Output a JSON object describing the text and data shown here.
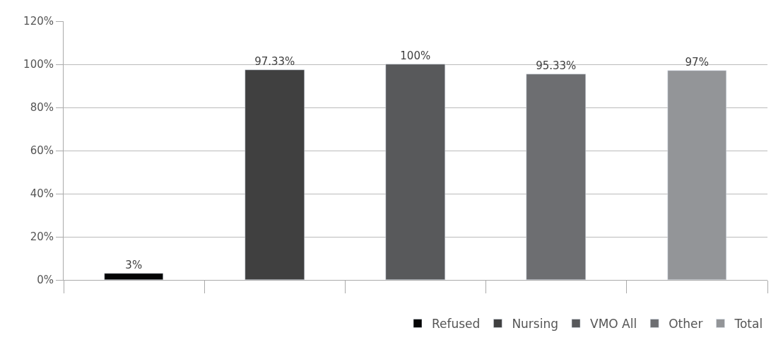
{
  "chart_data": {
    "type": "bar",
    "categories": [
      null,
      null,
      null,
      null,
      null
    ],
    "series": [
      {
        "name": "Refused",
        "color": "#050505",
        "values": [
          3,
          null,
          null,
          null,
          null
        ],
        "value_labels": [
          "3%",
          null,
          null,
          null,
          null
        ]
      },
      {
        "name": "Nursing",
        "color": "#404040",
        "values": [
          null,
          97.33,
          null,
          null,
          null
        ],
        "value_labels": [
          null,
          "97.33%",
          null,
          null,
          null
        ]
      },
      {
        "name": "VMO All",
        "color": "#58595b",
        "values": [
          null,
          null,
          100,
          null,
          null
        ],
        "value_labels": [
          null,
          null,
          "100%",
          null,
          null
        ]
      },
      {
        "name": "Other",
        "color": "#6d6e71",
        "values": [
          null,
          null,
          null,
          95.33,
          null
        ],
        "value_labels": [
          null,
          null,
          null,
          "95.33%",
          null
        ]
      },
      {
        "name": "Total",
        "color": "#939598",
        "values": [
          null,
          null,
          null,
          null,
          97
        ],
        "value_labels": [
          null,
          null,
          null,
          null,
          "97%"
        ]
      }
    ],
    "ylim": [
      0,
      120
    ],
    "yticks": [
      {
        "value": 0,
        "label": "0%"
      },
      {
        "value": 20,
        "label": "20%"
      },
      {
        "value": 40,
        "label": "40%"
      },
      {
        "value": 60,
        "label": "60%"
      },
      {
        "value": 80,
        "label": "80%"
      },
      {
        "value": 100,
        "label": "100%"
      },
      {
        "value": 120,
        "label": "120%"
      }
    ],
    "grid": "y",
    "legend": "bottom right"
  }
}
